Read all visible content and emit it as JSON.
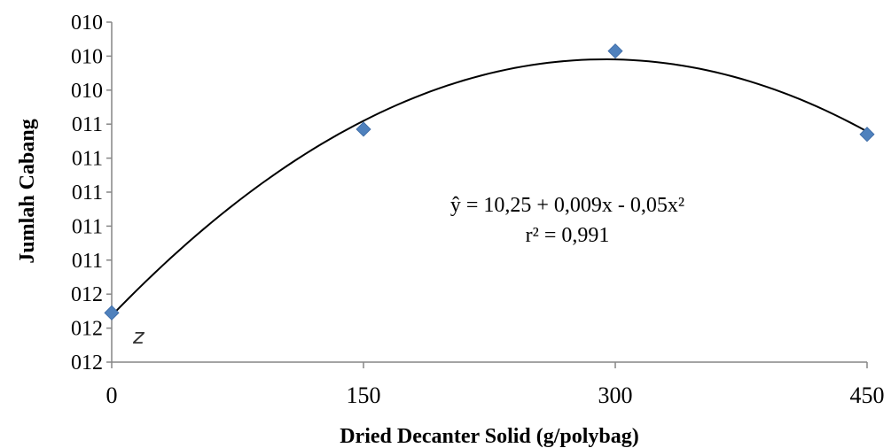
{
  "chart_data": {
    "type": "scatter",
    "xlabel": "Dried Decanter Solid (g/polybag)",
    "ylabel": "Jumlah Cabang",
    "x_ticks": [
      "0",
      "150",
      "300",
      "450"
    ],
    "y_ticks": [
      "010",
      "010",
      "010",
      "011",
      "011",
      "011",
      "011",
      "011",
      "012",
      "012",
      "012"
    ],
    "xlim": [
      0,
      450
    ],
    "ylim": [
      10.12,
      10.32
    ],
    "points": [
      {
        "x": 0,
        "y": 10.149
      },
      {
        "x": 150,
        "y": 10.257
      },
      {
        "x": 300,
        "y": 10.303
      },
      {
        "x": 450,
        "y": 10.254
      }
    ],
    "trendline": {
      "type": "polynomial",
      "degree": 2,
      "color": "#000000"
    },
    "annotation": {
      "equation": "ŷ = 10,25 + 0,009x - 0,05x²",
      "r_squared": "r² = 0,991"
    },
    "marker_color": "#4F81BD",
    "marker_shape": "diamond",
    "grid": false,
    "legend": "none"
  }
}
